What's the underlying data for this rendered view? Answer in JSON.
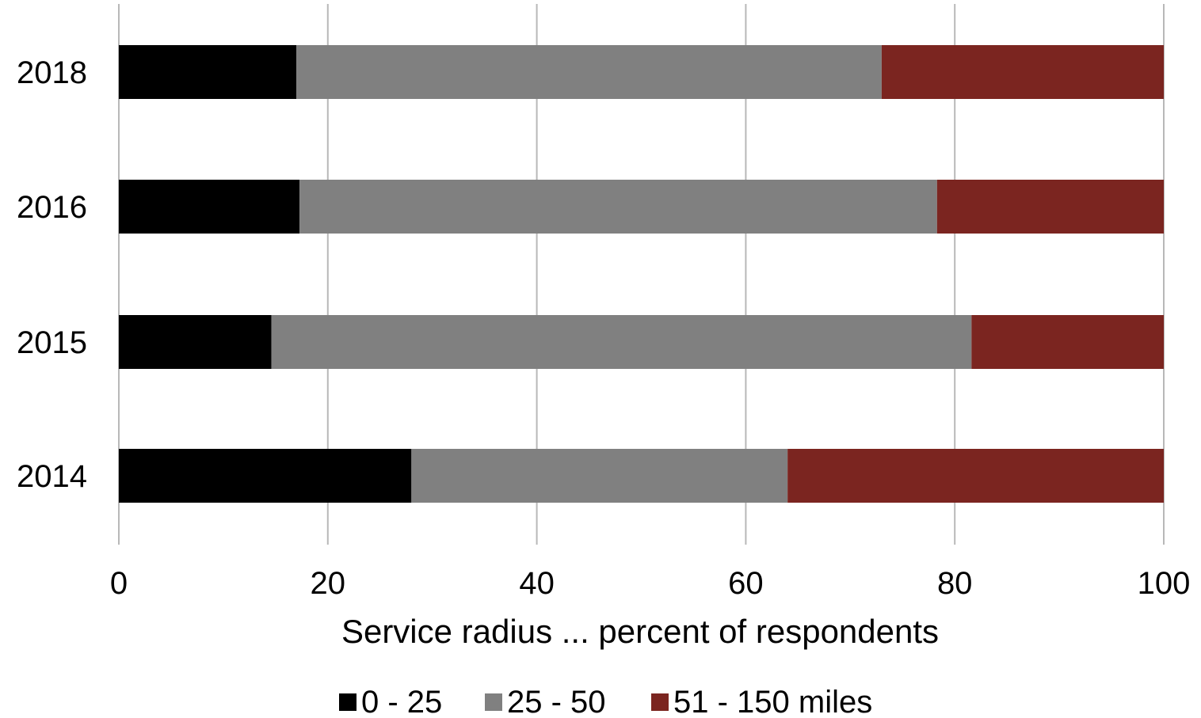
{
  "chart_data": {
    "type": "bar",
    "orientation": "horizontal",
    "stacked": true,
    "categories": [
      "2018",
      "2016",
      "2015",
      "2014"
    ],
    "series": [
      {
        "name": "0 - 25",
        "color": "#000000",
        "values": [
          17,
          17.3,
          14.6,
          28
        ]
      },
      {
        "name": "25 - 50",
        "color": "#808080",
        "values": [
          56,
          61,
          67,
          36
        ]
      },
      {
        "name": "51 - 150 miles",
        "color": "#7b2520",
        "values": [
          27,
          21.7,
          18.4,
          36
        ]
      }
    ],
    "x_ticks": [
      "0",
      "20",
      "40",
      "60",
      "80",
      "100"
    ],
    "xlim": [
      0,
      100
    ],
    "xlabel": "Service radius ... percent of respondents",
    "ylabel": "",
    "title": "",
    "grid": true,
    "legend_position": "bottom"
  }
}
